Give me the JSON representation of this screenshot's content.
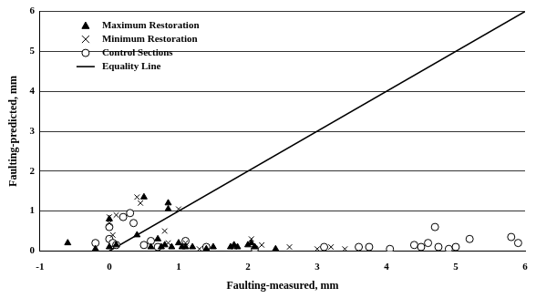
{
  "chart_data": {
    "type": "scatter",
    "x_label": "Faulting-measured, mm",
    "y_label": "Faulting-predicted, mm",
    "xlim": [
      -1,
      6
    ],
    "xticks": [
      -1,
      0,
      1,
      2,
      3,
      4,
      5,
      6
    ],
    "ylim": [
      0,
      6
    ],
    "yticks": [
      0,
      1,
      2,
      3,
      4,
      5,
      6
    ],
    "grid": true,
    "legend": "upper left",
    "series": [
      {
        "name": "Maximum Restoration",
        "color": "#000000",
        "marker": "triangle",
        "x": [
          -0.6,
          -0.2,
          0,
          0,
          0.1,
          0.4,
          0.5,
          0.6,
          0.7,
          0.75,
          0.8,
          0.85,
          0.85,
          0.9,
          1.0,
          1.05,
          1.1,
          1.2,
          1.4,
          1.5,
          1.75,
          1.8,
          1.85,
          2.0,
          2.05,
          2.1,
          2.4
        ],
        "values": [
          0.2,
          0.05,
          0.8,
          0.1,
          0.15,
          0.4,
          1.35,
          0.1,
          0.3,
          0.1,
          0.15,
          1.2,
          1.05,
          0.1,
          0.2,
          0.1,
          0.1,
          0.1,
          0.05,
          0.1,
          0.1,
          0.15,
          0.1,
          0.15,
          0.2,
          0.1,
          0.05
        ]
      },
      {
        "name": "Minimum Restoration",
        "color": "#000000",
        "marker": "x",
        "x": [
          0,
          0,
          0.05,
          0.1,
          0.4,
          0.45,
          0.8,
          0.85,
          1.0,
          1.1,
          1.3,
          1.8,
          2.05,
          2.2,
          2.6,
          3.0,
          3.2,
          3.4
        ],
        "values": [
          0.85,
          0.7,
          0.4,
          0.9,
          1.35,
          1.2,
          0.5,
          0.2,
          1.05,
          0.2,
          0.05,
          0.1,
          0.3,
          0.15,
          0.1,
          0.05,
          0.1,
          0.05
        ]
      },
      {
        "name": "Control Sections",
        "color": "#000000",
        "marker": "circle",
        "x": [
          -0.2,
          0,
          0,
          0.05,
          0.1,
          0.2,
          0.3,
          0.35,
          0.5,
          0.6,
          0.7,
          1.1,
          1.4,
          2.1,
          3.1,
          3.6,
          3.75,
          4.05,
          4.4,
          4.5,
          4.6,
          4.7,
          4.75,
          4.9,
          5.0,
          5.2,
          5.8,
          5.9
        ],
        "values": [
          0.2,
          0.3,
          0.6,
          0.2,
          0.15,
          0.85,
          0.95,
          0.7,
          0.15,
          0.25,
          0.1,
          0.25,
          0.1,
          0.05,
          0.1,
          0.1,
          0.1,
          0.05,
          0.15,
          0.1,
          0.2,
          0.6,
          0.1,
          0.05,
          0.1,
          0.3,
          0.35,
          0.2
        ]
      },
      {
        "name": "Equality Line",
        "color": "#000000",
        "type": "line",
        "line_style": "solid",
        "x": [
          0,
          6
        ],
        "values": [
          0,
          6
        ]
      }
    ]
  }
}
